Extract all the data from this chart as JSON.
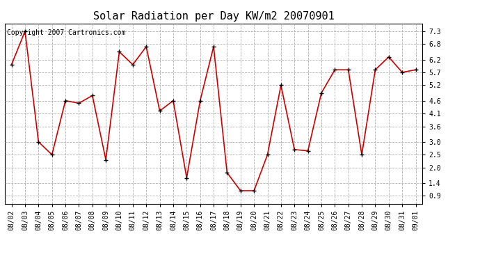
{
  "title": "Solar Radiation per Day KW/m2 20070901",
  "copyright_text": "Copyright 2007 Cartronics.com",
  "dates": [
    "08/02",
    "08/03",
    "08/04",
    "08/05",
    "08/06",
    "08/07",
    "08/08",
    "08/09",
    "08/10",
    "08/11",
    "08/12",
    "08/13",
    "08/14",
    "08/15",
    "08/16",
    "08/17",
    "08/18",
    "08/19",
    "08/20",
    "08/21",
    "08/22",
    "08/23",
    "08/24",
    "08/25",
    "08/26",
    "08/27",
    "08/28",
    "08/29",
    "08/30",
    "08/31",
    "09/01"
  ],
  "values": [
    6.0,
    7.3,
    3.0,
    2.5,
    4.6,
    4.5,
    4.8,
    2.3,
    6.5,
    6.0,
    6.7,
    4.2,
    4.6,
    1.6,
    4.6,
    6.7,
    1.8,
    1.1,
    1.1,
    2.5,
    5.2,
    2.7,
    2.65,
    4.9,
    5.8,
    5.8,
    2.5,
    5.8,
    6.3,
    5.7,
    5.8
  ],
  "line_color": "#cc0000",
  "marker_color": "#000000",
  "bg_color": "#ffffff",
  "plot_bg_color": "#ffffff",
  "grid_color": "#b0b0b0",
  "ylim": [
    0.6,
    7.6
  ],
  "yticks": [
    0.9,
    1.4,
    2.0,
    2.5,
    3.0,
    3.6,
    4.1,
    4.6,
    5.2,
    5.7,
    6.2,
    6.8,
    7.3
  ],
  "title_fontsize": 11,
  "copyright_fontsize": 7,
  "tick_fontsize": 7,
  "figwidth": 6.9,
  "figheight": 3.75,
  "dpi": 100
}
